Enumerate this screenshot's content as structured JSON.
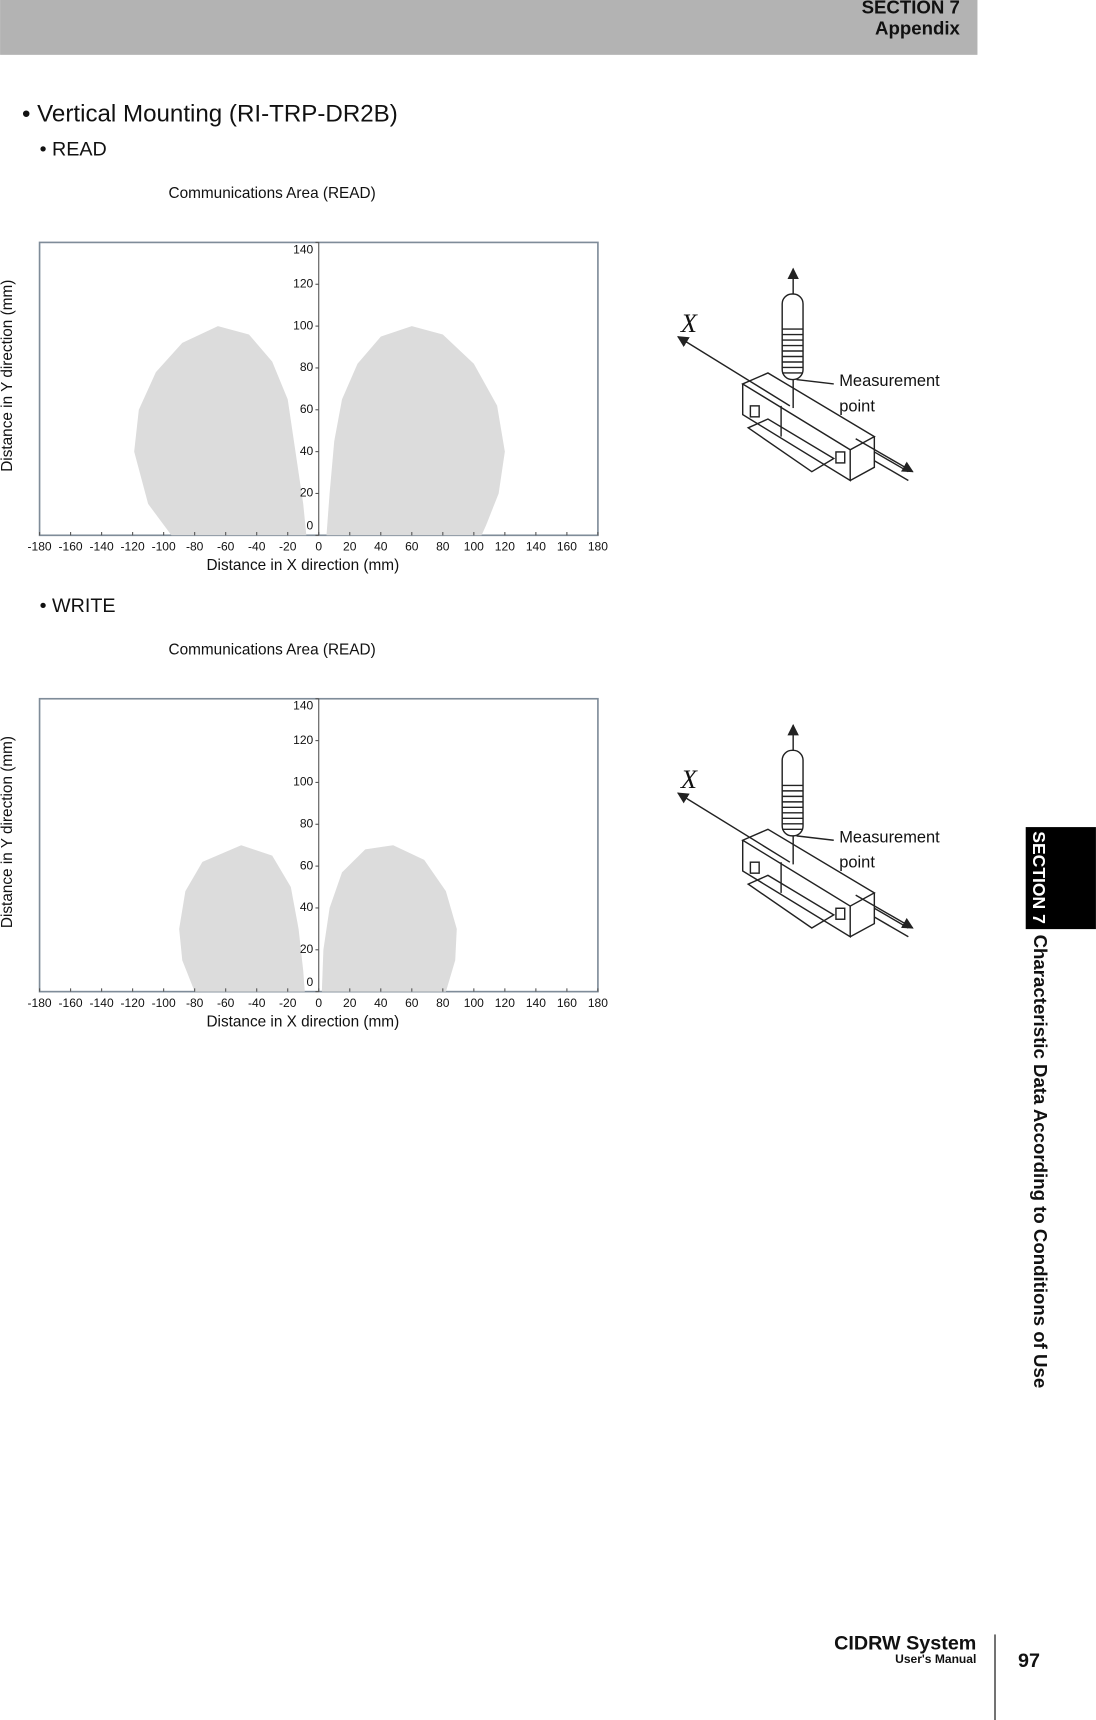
{
  "header": {
    "section": "SECTION 7",
    "title": "Appendix"
  },
  "heading": "• Vertical Mounting (RI-TRP-DR2B)",
  "sections": [
    {
      "label": "• READ",
      "chart": {
        "type": "area",
        "title": "Communications Area (READ)",
        "x_label": "Distance in X direction (mm)",
        "y_label": "Distance in Y direction (mm)",
        "xlim": [
          -180,
          180
        ],
        "ylim": [
          0,
          140
        ],
        "xticks": [
          -180,
          -160,
          -140,
          -120,
          -100,
          -80,
          -60,
          -40,
          -20,
          0,
          20,
          40,
          60,
          80,
          100,
          120,
          140,
          160,
          180
        ],
        "yticks": [
          0,
          20,
          40,
          60,
          80,
          100,
          120,
          140
        ],
        "color": "#dcdcdc",
        "series": [
          {
            "x": [
              -95,
              -110,
              -119,
              -116,
              -105,
              -88,
              -65,
              -45,
              -30,
              -20,
              -15,
              -10,
              -8
            ],
            "values": [
              0,
              15,
              40,
              60,
              78,
              92,
              100,
              96,
              83,
              65,
              40,
              15,
              0
            ]
          },
          {
            "x": [
              5,
              7,
              10,
              15,
              25,
              40,
              60,
              80,
              100,
              115,
              120,
              116,
              108,
              105
            ],
            "values": [
              0,
              20,
              45,
              65,
              82,
              95,
              100,
              96,
              82,
              62,
              40,
              20,
              5,
              0
            ]
          }
        ]
      },
      "diagram": {
        "axis": "X",
        "label": [
          "Measurement",
          "point"
        ]
      }
    },
    {
      "label": "• WRITE",
      "chart": {
        "type": "area",
        "title": "Communications Area (READ)",
        "x_label": "Distance in X direction (mm)",
        "y_label": "Distance in Y direction (mm)",
        "xlim": [
          -180,
          180
        ],
        "ylim": [
          0,
          140
        ],
        "xticks": [
          -180,
          -160,
          -140,
          -120,
          -100,
          -80,
          -60,
          -40,
          -20,
          0,
          20,
          40,
          60,
          80,
          100,
          120,
          140,
          160,
          180
        ],
        "yticks": [
          0,
          20,
          40,
          60,
          80,
          100,
          120,
          140
        ],
        "color": "#dcdcdc",
        "series": [
          {
            "x": [
              -80,
              -88,
              -90,
              -86,
              -75,
              -50,
              -30,
              -18,
              -13,
              -10,
              -9
            ],
            "values": [
              0,
              15,
              30,
              48,
              62,
              70,
              65,
              50,
              30,
              10,
              0
            ]
          },
          {
            "x": [
              2,
              3,
              7,
              15,
              30,
              48,
              68,
              82,
              89,
              88,
              82
            ],
            "values": [
              0,
              20,
              40,
              57,
              68,
              70,
              63,
              48,
              30,
              15,
              0
            ]
          }
        ]
      },
      "diagram": {
        "axis": "X",
        "label": [
          "Measurement",
          "point"
        ]
      }
    }
  ],
  "side_tab": {
    "section": "SECTION 7",
    "title": "Characteristic Data According to Conditions of Use"
  },
  "footer": {
    "product": "CIDRW System",
    "subtitle": "User's Manual",
    "page": "97"
  }
}
